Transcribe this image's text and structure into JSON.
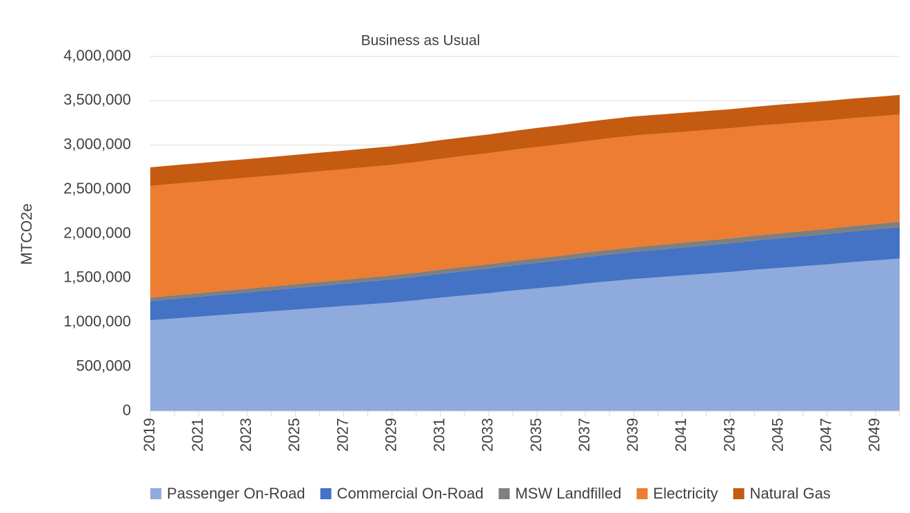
{
  "chart_data": {
    "type": "area",
    "stacked": true,
    "title": "Business as Usual",
    "y_label": "MTCO2e",
    "categories": [
      "2019",
      null,
      "2021",
      null,
      "2023",
      null,
      "2025",
      null,
      "2027",
      null,
      "2029",
      null,
      "2031",
      null,
      "2033",
      null,
      "2035",
      null,
      "2037",
      null,
      "2039",
      null,
      "2041",
      null,
      "2043",
      null,
      "2045",
      null,
      "2047",
      null,
      "2049",
      null
    ],
    "series": [
      {
        "name": "Passenger On-Road",
        "color": "#8faadc",
        "values": [
          1025000,
          1045000,
          1065000,
          1085000,
          1105000,
          1125000,
          1145000,
          1165000,
          1185000,
          1205000,
          1225000,
          1250000,
          1280000,
          1305000,
          1330000,
          1360000,
          1385000,
          1410000,
          1440000,
          1465000,
          1490000,
          1510000,
          1530000,
          1550000,
          1570000,
          1595000,
          1615000,
          1635000,
          1655000,
          1680000,
          1700000,
          1720000
        ]
      },
      {
        "name": "Commercial On-Road",
        "color": "#4472c4",
        "values": [
          215000,
          220000,
          224000,
          229000,
          233000,
          238000,
          242000,
          247000,
          251000,
          256000,
          260000,
          265000,
          269000,
          274000,
          278000,
          283000,
          287000,
          292000,
          296000,
          301000,
          305000,
          310000,
          314000,
          319000,
          323000,
          328000,
          332000,
          337000,
          341000,
          346000,
          350000,
          355000
        ]
      },
      {
        "name": "MSW Landfilled",
        "color": "#7f7f7f",
        "values": [
          40000,
          41000,
          41000,
          42000,
          43000,
          43000,
          44000,
          45000,
          45000,
          46000,
          47000,
          47000,
          48000,
          49000,
          49000,
          50000,
          51000,
          51000,
          52000,
          53000,
          53000,
          54000,
          55000,
          55000,
          56000,
          57000,
          57000,
          58000,
          59000,
          59000,
          60000,
          61000
        ]
      },
      {
        "name": "Electricity",
        "color": "#ed7d31",
        "values": [
          1260000,
          1258000,
          1256000,
          1254000,
          1252000,
          1250000,
          1249000,
          1248000,
          1247000,
          1246000,
          1245000,
          1247000,
          1249000,
          1251000,
          1253000,
          1255000,
          1256000,
          1257000,
          1258000,
          1259000,
          1260000,
          1255000,
          1250000,
          1246000,
          1241000,
          1237000,
          1232000,
          1228000,
          1223000,
          1219000,
          1214000,
          1210000
        ]
      },
      {
        "name": "Natural Gas",
        "color": "#c55a11",
        "values": [
          210000,
          210000,
          210000,
          210000,
          210000,
          210000,
          210000,
          210000,
          210000,
          210000,
          210000,
          210000,
          210000,
          210000,
          210000,
          210000,
          215000,
          215000,
          215000,
          215000,
          215000,
          215000,
          215000,
          215000,
          215000,
          215000,
          220000,
          220000,
          220000,
          220000,
          220000,
          220000
        ]
      }
    ],
    "ylim": [
      0,
      4000000
    ],
    "yticks": [
      0,
      {
        "value": 500000,
        "label": "500,000"
      },
      {
        "value": 1000000,
        "label": "1,000,000"
      },
      {
        "value": 1500000,
        "label": "1,500,000"
      },
      {
        "value": 2000000,
        "label": "2,000,000"
      },
      {
        "value": 2500000,
        "label": "2,500,000"
      },
      {
        "value": 3000000,
        "label": "3,000,000"
      },
      {
        "value": 3500000,
        "label": "3,500,000"
      },
      {
        "value": 4000000,
        "label": "4,000,000"
      }
    ],
    "grid": true,
    "legend": "bottom"
  }
}
